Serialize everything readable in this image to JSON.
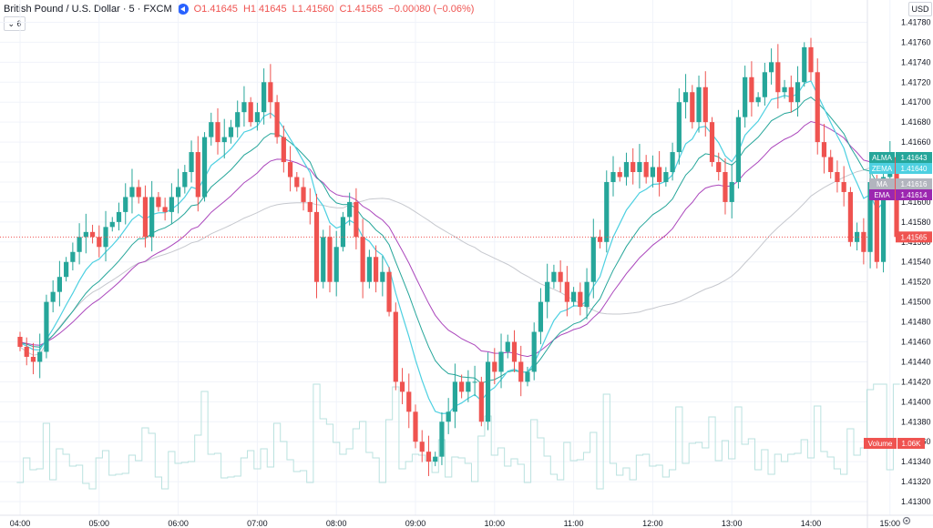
{
  "header": {
    "title": "British Pound / U.S. Dollar · 5 · FXCM",
    "open": "O1.41645",
    "high": "H1.41645",
    "low": "L1.41560",
    "close": "C1.41565",
    "change": "−0.00080 (−0.06%)",
    "collapse_label": "6",
    "currency_label": "USD"
  },
  "chart_data": {
    "type": "candlestick",
    "title": "British Pound / U.S. Dollar · 5 · FXCM",
    "y_ticks": [
      1.4178,
      1.4176,
      1.4174,
      1.4172,
      1.417,
      1.4168,
      1.4166,
      1.4164,
      1.4162,
      1.416,
      1.4158,
      1.4156,
      1.4154,
      1.4152,
      1.415,
      1.4148,
      1.4146,
      1.4144,
      1.4142,
      1.414,
      1.4138,
      1.4136,
      1.4134,
      1.4132,
      1.413
    ],
    "y_tick_labels": [
      "1.41780",
      "1.41760",
      "1.41740",
      "1.41720",
      "1.41700",
      "1.41680",
      "1.41660",
      "1.41640",
      "1.41620",
      "1.41600",
      "1.41580",
      "1.41560",
      "1.41540",
      "1.41520",
      "1.41500",
      "1.41480",
      "1.41460",
      "1.41440",
      "1.41420",
      "1.41400",
      "1.41380",
      "1.41360",
      "1.41340",
      "1.41320",
      "1.41300"
    ],
    "ylim": [
      1.4129,
      1.41795
    ],
    "x_ticks": [
      "04:00",
      "05:00",
      "06:00",
      "07:00",
      "08:00",
      "09:00",
      "10:00",
      "11:00",
      "12:00",
      "13:00",
      "14:00",
      "15:00"
    ],
    "x_start_minutes": 240,
    "closes": [
      1.41455,
      1.41445,
      1.4144,
      1.4145,
      1.415,
      1.4151,
      1.41525,
      1.4154,
      1.4155,
      1.41565,
      1.4157,
      1.41565,
      1.41555,
      1.41575,
      1.4158,
      1.4159,
      1.41605,
      1.41615,
      1.41605,
      1.41565,
      1.41605,
      1.41595,
      1.4159,
      1.41605,
      1.41615,
      1.4163,
      1.4165,
      1.41605,
      1.41665,
      1.4168,
      1.4166,
      1.41665,
      1.41675,
      1.4169,
      1.417,
      1.4168,
      1.4169,
      1.4172,
      1.417,
      1.41665,
      1.4164,
      1.41625,
      1.41615,
      1.416,
      1.4159,
      1.4152,
      1.41565,
      1.4152,
      1.41555,
      1.41585,
      1.416,
      1.41565,
      1.4152,
      1.41545,
      1.4152,
      1.4153,
      1.4149,
      1.4142,
      1.4141,
      1.4139,
      1.4136,
      1.4135,
      1.4134,
      1.41345,
      1.4138,
      1.4139,
      1.4142,
      1.4141,
      1.4142,
      1.4142,
      1.4138,
      1.4144,
      1.4143,
      1.4145,
      1.4146,
      1.4144,
      1.4142,
      1.4143,
      1.4147,
      1.415,
      1.4152,
      1.4153,
      1.4152,
      1.415,
      1.4151,
      1.41495,
      1.4152,
      1.41565,
      1.4156,
      1.4162,
      1.4163,
      1.41625,
      1.4164,
      1.4163,
      1.4164,
      1.41625,
      1.41635,
      1.4162,
      1.4163,
      1.4165,
      1.417,
      1.4171,
      1.4168,
      1.41715,
      1.4168,
      1.4164,
      1.4163,
      1.416,
      1.4162,
      1.41685,
      1.41725,
      1.417,
      1.41705,
      1.4173,
      1.4174,
      1.4171,
      1.41715,
      1.417,
      1.4172,
      1.41755,
      1.4173,
      1.4166,
      1.41645,
      1.4163,
      1.4162,
      1.4161,
      1.4156,
      1.4157,
      1.4155,
      1.4162,
      1.4154,
      1.41625,
      1.41645,
      1.41565
    ],
    "last_price": "1.41565",
    "indicators": [
      {
        "name": "ALMA",
        "value": "1.41643",
        "color": "#26a69a"
      },
      {
        "name": "ZEMA",
        "value": "1.41640",
        "color": "#4dd0e1"
      },
      {
        "name": "MA",
        "value": "1.41616",
        "color": "#b2b5be"
      },
      {
        "name": "EMA",
        "value": "1.41614",
        "color": "#9c27b0"
      }
    ],
    "volume_label": "Volume",
    "volume_value": "1.06K",
    "up_color": "#26a69a",
    "down_color": "#ef5350"
  }
}
